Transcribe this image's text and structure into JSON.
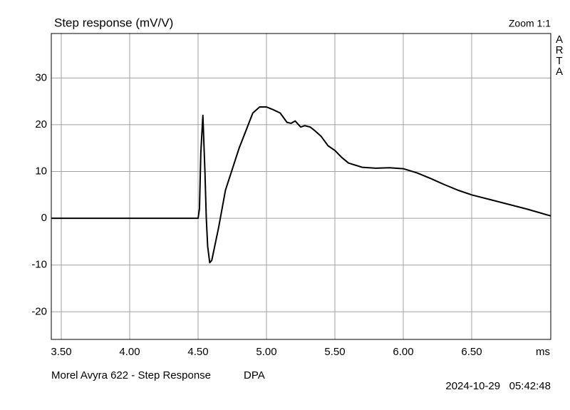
{
  "chart_data": {
    "type": "line",
    "title": "Step response (mV/V)",
    "zoom_label": "Zoom 1:1",
    "brand": "ARTA",
    "x_unit": "ms",
    "footer_left": "Morel Avyra 622 - Step Response",
    "footer_mode": "DPA",
    "timestamp": "2024-10-29   05:42:48",
    "xlim": [
      3.427,
      7.078
    ],
    "ylim": [
      -25.9,
      39.5
    ],
    "xticks": [
      {
        "value": 3.5,
        "label": "3.50"
      },
      {
        "value": 4.0,
        "label": "4.00"
      },
      {
        "value": 4.5,
        "label": "4.50"
      },
      {
        "value": 5.0,
        "label": "5.00"
      },
      {
        "value": 5.5,
        "label": "5.50"
      },
      {
        "value": 6.0,
        "label": "6.00"
      },
      {
        "value": 6.5,
        "label": "6.50"
      }
    ],
    "yticks": [
      30,
      20,
      10,
      0,
      -10,
      -20
    ],
    "grid": true,
    "series": [
      {
        "color": "#000000",
        "x": [
          3.427,
          4.5,
          4.51,
          4.52,
          4.535,
          4.55,
          4.56,
          4.57,
          4.585,
          4.6,
          4.65,
          4.7,
          4.8,
          4.9,
          4.95,
          5.0,
          5.05,
          5.1,
          5.15,
          5.18,
          5.21,
          5.25,
          5.28,
          5.32,
          5.35,
          5.4,
          5.45,
          5.5,
          5.55,
          5.6,
          5.7,
          5.8,
          5.9,
          6.0,
          6.1,
          6.2,
          6.3,
          6.4,
          6.5,
          6.7,
          6.9,
          7.078
        ],
        "values": [
          0,
          0,
          2,
          14,
          22,
          10,
          0,
          -6,
          -9.5,
          -9,
          -2,
          6,
          15,
          22.5,
          23.8,
          23.8,
          23.2,
          22.5,
          20.5,
          20.3,
          20.8,
          19.5,
          19.8,
          19.5,
          18.8,
          17.5,
          15.5,
          14.5,
          13,
          11.8,
          10.9,
          10.7,
          10.8,
          10.6,
          9.7,
          8.5,
          7.2,
          6,
          5,
          3.5,
          2,
          0.5
        ]
      }
    ]
  }
}
